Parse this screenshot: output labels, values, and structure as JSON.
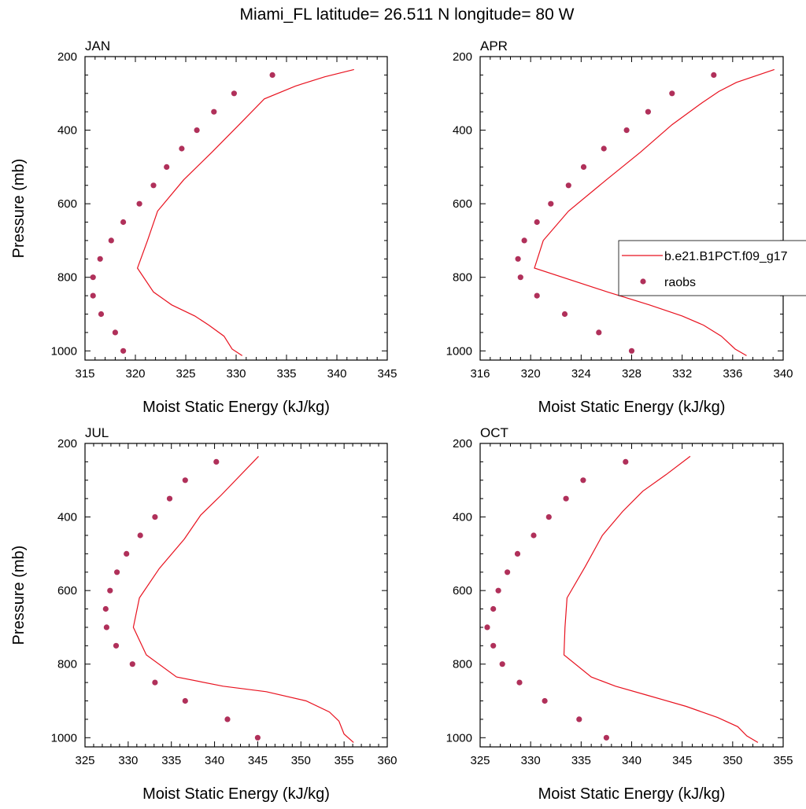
{
  "figure": {
    "title": "Miami_FL  latitude= 26.511 N longitude= 80 W"
  },
  "legend": {
    "entries": [
      {
        "label": "b.e21.B1PCT.f09_g17",
        "style": "line",
        "color": "#e8121f"
      },
      {
        "label": "raobs",
        "style": "marker",
        "color": "#b0305a"
      }
    ]
  },
  "colors": {
    "model_line": "#e8121f",
    "raobs_marker": "#b0305a"
  },
  "chart_data": [
    {
      "type": "line",
      "panel_title": "JAN",
      "xlabel": "Moist Static Energy (kJ/kg)",
      "ylabel": "Pressure (mb)",
      "xlim": [
        315,
        345
      ],
      "xticks": [
        315,
        320,
        325,
        330,
        335,
        340,
        345
      ],
      "ylim": [
        1025,
        200
      ],
      "yticks": [
        200,
        400,
        600,
        800,
        1000
      ],
      "series": [
        {
          "name": "b.e21.B1PCT.f09_g17",
          "kind": "line",
          "x": [
            330.6,
            329.6,
            328.8,
            327.3,
            325.9,
            323.6,
            321.8,
            320.2,
            321.2,
            322.2,
            324.8,
            327.6,
            330.3,
            332.8,
            335.9,
            338.8,
            341.7
          ],
          "y": [
            1013,
            995,
            960,
            930,
            905,
            875,
            840,
            775,
            700,
            620,
            535,
            460,
            385,
            315,
            280,
            255,
            235
          ]
        },
        {
          "name": "raobs",
          "kind": "marker",
          "x": [
            318.8,
            318.0,
            316.6,
            315.8,
            315.8,
            316.5,
            317.6,
            318.8,
            320.4,
            321.8,
            323.1,
            324.6,
            326.1,
            327.8,
            329.8,
            333.6
          ],
          "y": [
            1000,
            950,
            900,
            850,
            800,
            750,
            700,
            650,
            600,
            550,
            500,
            450,
            400,
            350,
            300,
            250
          ]
        }
      ]
    },
    {
      "type": "line",
      "panel_title": "APR",
      "xlabel": "Moist Static Energy (kJ/kg)",
      "ylabel": "",
      "xlim": [
        316,
        340
      ],
      "xticks": [
        316,
        320,
        324,
        328,
        332,
        336,
        340
      ],
      "ylim": [
        1025,
        200
      ],
      "yticks": [
        200,
        400,
        600,
        800,
        1000
      ],
      "series": [
        {
          "name": "b.e21.B1PCT.f09_g17",
          "kind": "line",
          "x": [
            337.1,
            336.2,
            335.1,
            333.7,
            332.0,
            329.4,
            326.1,
            320.3,
            321.0,
            323.0,
            326.0,
            328.7,
            331.2,
            333.6,
            334.9,
            336.3,
            339.3
          ],
          "y": [
            1013,
            995,
            960,
            930,
            905,
            875,
            840,
            775,
            700,
            620,
            535,
            460,
            385,
            325,
            295,
            270,
            235
          ]
        },
        {
          "name": "raobs",
          "kind": "marker",
          "x": [
            328.0,
            325.4,
            322.7,
            320.5,
            319.2,
            319.0,
            319.5,
            320.5,
            321.6,
            323.0,
            324.2,
            325.8,
            327.6,
            329.3,
            331.2,
            334.5
          ],
          "y": [
            1000,
            950,
            900,
            850,
            800,
            750,
            700,
            650,
            600,
            550,
            500,
            450,
            400,
            350,
            300,
            250
          ]
        }
      ]
    },
    {
      "type": "line",
      "panel_title": "JUL",
      "xlabel": "Moist Static Energy (kJ/kg)",
      "ylabel": "Pressure (mb)",
      "xlim": [
        325,
        360
      ],
      "xticks": [
        325,
        330,
        335,
        340,
        345,
        350,
        355,
        360
      ],
      "ylim": [
        1025,
        200
      ],
      "yticks": [
        200,
        400,
        600,
        800,
        1000
      ],
      "series": [
        {
          "name": "b.e21.B1PCT.f09_g17",
          "kind": "line",
          "x": [
            356.1,
            355.0,
            354.4,
            353.3,
            350.6,
            346.0,
            341.0,
            335.6,
            332.1,
            330.6,
            331.3,
            333.6,
            336.5,
            338.4,
            340.8,
            345.1
          ],
          "y": [
            1013,
            990,
            955,
            930,
            900,
            875,
            860,
            835,
            775,
            700,
            620,
            540,
            460,
            395,
            340,
            235
          ]
        },
        {
          "name": "raobs",
          "kind": "marker",
          "x": [
            345.0,
            341.5,
            336.6,
            333.1,
            330.5,
            328.6,
            327.5,
            327.4,
            327.9,
            328.7,
            329.8,
            331.4,
            333.1,
            334.8,
            336.6,
            340.2
          ],
          "y": [
            1000,
            950,
            900,
            850,
            800,
            750,
            700,
            650,
            600,
            550,
            500,
            450,
            400,
            350,
            300,
            250
          ]
        }
      ]
    },
    {
      "type": "line",
      "panel_title": "OCT",
      "xlabel": "Moist Static Energy (kJ/kg)",
      "ylabel": "",
      "xlim": [
        325,
        355
      ],
      "xticks": [
        325,
        330,
        335,
        340,
        345,
        350,
        355
      ],
      "ylim": [
        1025,
        200
      ],
      "yticks": [
        200,
        400,
        600,
        800,
        1000
      ],
      "series": [
        {
          "name": "b.e21.B1PCT.f09_g17",
          "kind": "line",
          "x": [
            352.5,
            351.4,
            350.5,
            348.5,
            345.4,
            341.6,
            338.4,
            336.0,
            333.3,
            333.4,
            333.6,
            335.4,
            337.1,
            339.1,
            341.1,
            343.4,
            345.8
          ],
          "y": [
            1013,
            995,
            970,
            945,
            915,
            885,
            860,
            835,
            775,
            700,
            620,
            535,
            450,
            385,
            330,
            285,
            235
          ]
        },
        {
          "name": "raobs",
          "kind": "marker",
          "x": [
            337.5,
            334.8,
            331.4,
            328.9,
            327.2,
            326.3,
            325.7,
            326.3,
            326.8,
            327.7,
            328.7,
            330.3,
            331.8,
            333.5,
            335.2,
            339.4
          ],
          "y": [
            1000,
            950,
            900,
            850,
            800,
            750,
            700,
            650,
            600,
            550,
            500,
            450,
            400,
            350,
            300,
            250
          ]
        }
      ]
    }
  ]
}
